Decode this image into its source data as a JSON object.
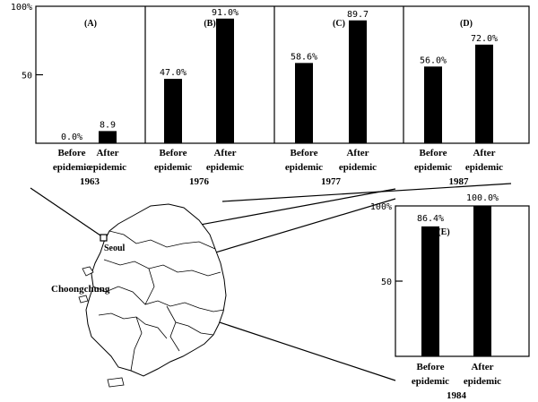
{
  "chart_data": [
    {
      "type": "bar",
      "panel": "(A)",
      "year": "1963",
      "categories": [
        "Before\nepidemic",
        "After\nepidemic"
      ],
      "values": [
        0.0,
        8.9
      ],
      "value_labels": [
        "0.0%",
        "8.9"
      ],
      "ylim": [
        0,
        100
      ],
      "y_ticks": [
        "50",
        "100%"
      ],
      "y_tick_values": [
        50,
        100
      ]
    },
    {
      "type": "bar",
      "panel": "(B)",
      "year": "1976",
      "categories": [
        "Before\nepidemic",
        "After\nepidemic"
      ],
      "values": [
        47.0,
        91.0
      ],
      "value_labels": [
        "47.0%",
        "91.0%"
      ],
      "ylim": [
        0,
        100
      ]
    },
    {
      "type": "bar",
      "panel": "(C)",
      "year": "1977",
      "categories": [
        "Before\nepidemic",
        "After\nepidemic"
      ],
      "values": [
        58.6,
        89.7
      ],
      "value_labels": [
        "58.6%",
        "89.7"
      ],
      "ylim": [
        0,
        100
      ]
    },
    {
      "type": "bar",
      "panel": "(D)",
      "year": "1987",
      "categories": [
        "Before\nepidemic",
        "After\nepidemic"
      ],
      "values": [
        56.0,
        72.0
      ],
      "value_labels": [
        "56.0%",
        "72.0%"
      ],
      "ylim": [
        0,
        100
      ]
    },
    {
      "type": "bar",
      "panel": "(E)",
      "year": "1984",
      "categories": [
        "Before\nepidemic",
        "After\nepidemic"
      ],
      "values": [
        86.4,
        100.0
      ],
      "value_labels": [
        "86.4%",
        "100.0%"
      ],
      "ylim": [
        0,
        100
      ],
      "y_ticks": [
        "50",
        "100%"
      ],
      "y_tick_values": [
        50,
        100
      ]
    }
  ],
  "map": {
    "labels": {
      "seoul": "Seoul",
      "choongchung": "Choongchung"
    }
  }
}
